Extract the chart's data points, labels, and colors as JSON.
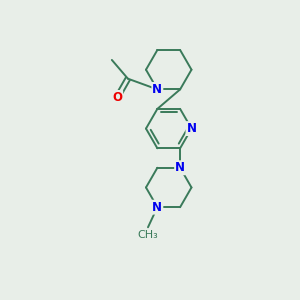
{
  "background_color": "#e8eee8",
  "bond_color": "#3a7a5a",
  "N_color": "#0000ee",
  "O_color": "#ee0000",
  "font_size": 8.5,
  "line_width": 1.4,
  "figsize": [
    3.0,
    3.0
  ],
  "dpi": 100,
  "xlim": [
    0.1,
    0.9
  ],
  "ylim": [
    -0.05,
    1.05
  ]
}
